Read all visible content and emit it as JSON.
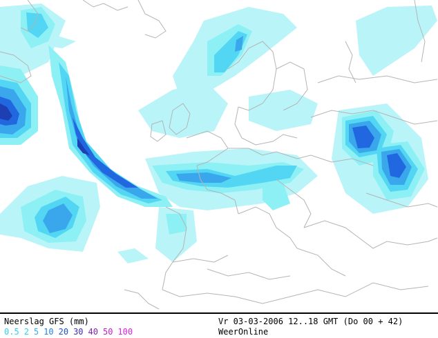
{
  "map": {
    "colors": {
      "background": "#ffffff",
      "borders": "#b4b4b4",
      "precip_levels": [
        "#b9f5f8",
        "#8df0f5",
        "#52d6f3",
        "#3aa6ec",
        "#2167e0",
        "#1e3fb4",
        "#3a2b9a"
      ]
    }
  },
  "footer": {
    "legend_title": "Neerslag GFS (mm)",
    "legend_levels": [
      {
        "label": "0.5",
        "color": "#2fd0f0"
      },
      {
        "label": "2",
        "color": "#2fd0f0"
      },
      {
        "label": "5",
        "color": "#2fb0f0"
      },
      {
        "label": "10",
        "color": "#2080e0"
      },
      {
        "label": "20",
        "color": "#1f4fd0"
      },
      {
        "label": "30",
        "color": "#3a2fb0"
      },
      {
        "label": "40",
        "color": "#8020b0"
      },
      {
        "label": "50",
        "color": "#c020c0"
      },
      {
        "label": "100",
        "color": "#e020e0"
      }
    ],
    "validity": "Vr 03-03-2006 12..18 GMT (Do 00 + 42)",
    "provider": "WeerOnline"
  }
}
